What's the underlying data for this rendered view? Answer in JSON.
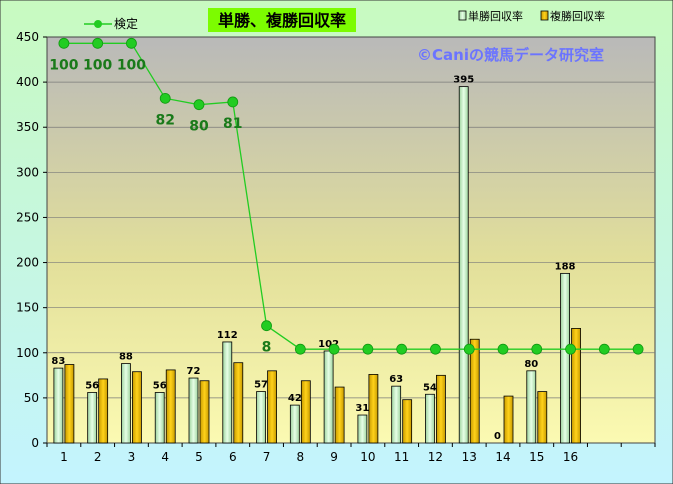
{
  "chart_data": {
    "type": "bar",
    "title": "単勝、複勝回収率",
    "watermark": "©Caniの競馬データ研究室",
    "xlabel": "",
    "ylabel": "",
    "ylim": [
      0,
      450
    ],
    "yticks": [
      0,
      50,
      100,
      150,
      200,
      250,
      300,
      350,
      400,
      450
    ],
    "categories": [
      "1",
      "2",
      "3",
      "4",
      "5",
      "6",
      "7",
      "8",
      "9",
      "10",
      "11",
      "12",
      "13",
      "14",
      "15",
      "16",
      "",
      ""
    ],
    "grid": true,
    "legend_position": "top",
    "series": [
      {
        "name": "単勝回収率",
        "kind": "bar",
        "color": "#c8f0c8",
        "values": [
          83,
          56,
          88,
          56,
          72,
          112,
          57,
          42,
          102,
          31,
          63,
          54,
          395,
          0,
          80,
          188,
          null,
          null
        ],
        "labels": [
          "83",
          "56",
          "88",
          "56",
          "72",
          "112",
          "57",
          "42",
          "102",
          "31",
          "63",
          "54",
          "395",
          "0",
          "80",
          "188",
          "",
          ""
        ]
      },
      {
        "name": "複勝回収率",
        "kind": "bar",
        "color": "#e6b800",
        "values": [
          87,
          71,
          79,
          81,
          69,
          89,
          80,
          69,
          62,
          76,
          48,
          75,
          115,
          52,
          57,
          127,
          null,
          null
        ]
      },
      {
        "name": "検定",
        "kind": "line",
        "color": "#22cc22",
        "values": [
          100,
          100,
          100,
          82,
          80,
          81,
          8,
          0,
          0,
          0,
          0,
          0,
          0,
          0,
          0,
          0,
          0,
          0
        ],
        "plot_y": [
          443,
          443,
          443,
          382,
          375,
          378,
          130,
          104,
          104,
          104,
          104,
          104,
          104,
          104,
          104,
          104,
          104,
          104
        ],
        "labels": [
          "100",
          "100",
          "100",
          "82",
          "80",
          "81",
          "8",
          "",
          "",
          "",
          "",
          "",
          "",
          "",
          "",
          "",
          "",
          ""
        ]
      }
    ],
    "colors": {
      "label_green": "#1a7a1a",
      "watermark": "#6b74ff",
      "title_bg": "#7cfc00"
    }
  }
}
